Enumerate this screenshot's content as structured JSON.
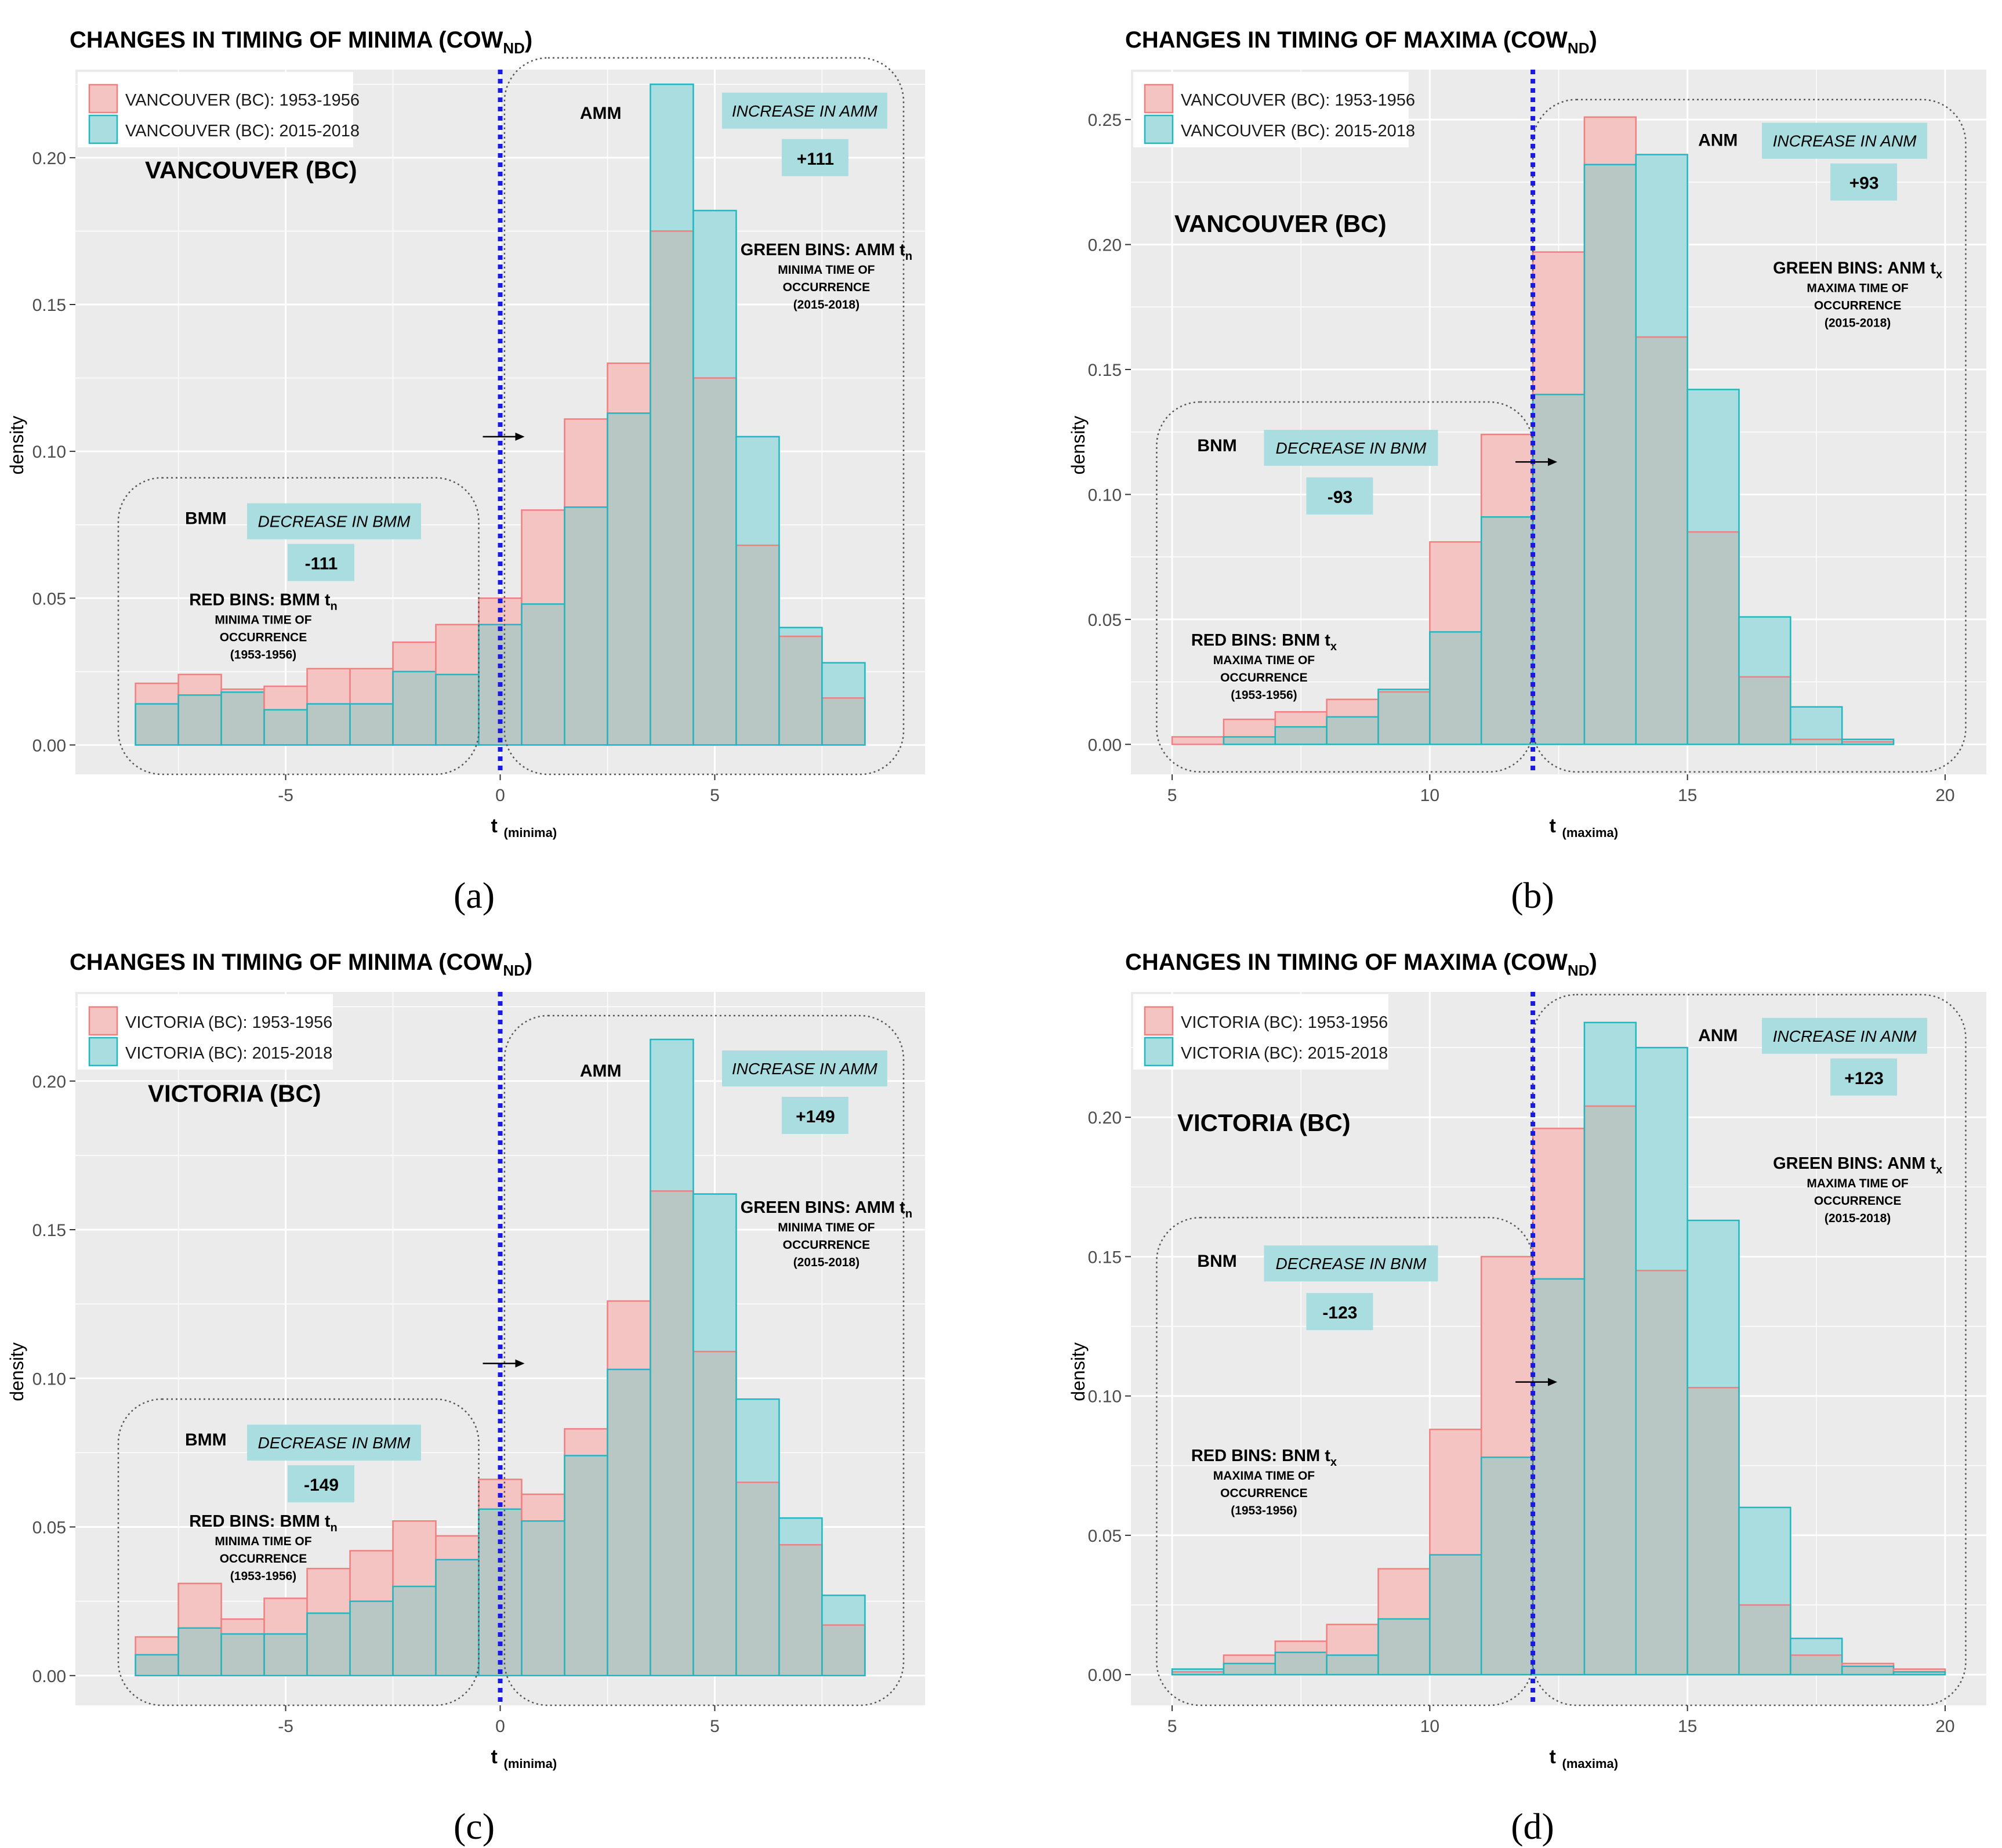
{
  "figure": {
    "note": "Four-panel histogram figure comparing timing of minima and maxima",
    "colors": {
      "red_fill": "#f4c4c3",
      "red_stroke": "#f08080",
      "cyan_fill": "#a9dde0",
      "cyan_stroke": "#1fb8c1",
      "overlap_fill": "#b8c7c4",
      "panel_bg": "#ebebeb",
      "grid": "#ffffff",
      "vline": "#1a1ae6",
      "label_box": "#a9dde0"
    }
  },
  "chart_data": [
    {
      "id": "a",
      "type": "bar",
      "panel_label": "(a)",
      "title_main": "CHANGES IN TIMING OF MINIMA (COW",
      "title_sub": "ND",
      "title_close": ")",
      "xlabel": "t",
      "xlabel_sub": "(minima)",
      "ylabel": "density",
      "xlim": [
        -9.9,
        9.9
      ],
      "ylim": [
        -0.01,
        0.23
      ],
      "xticks": [
        -5,
        0,
        5
      ],
      "xtick_labels": [
        "-5",
        "0",
        "5"
      ],
      "yticks": [
        0,
        0.05,
        0.1,
        0.15,
        0.2
      ],
      "ytick_labels": [
        "0.00",
        "0.05",
        "0.10",
        "0.15",
        "0.20"
      ],
      "vline": 0,
      "bin_width": 1,
      "bin_starts": [
        -8.5,
        -7.5,
        -6.5,
        -5.5,
        -4.5,
        -3.5,
        -2.5,
        -1.5,
        -0.5,
        0.5,
        1.5,
        2.5,
        3.5,
        4.5,
        5.5,
        6.5,
        7.5,
        8.5
      ],
      "legend": [
        "VANCOUVER (BC): 1953-1956",
        "VANCOUVER (BC): 2015-2018"
      ],
      "series": [
        {
          "name": "VANCOUVER (BC): 1953-1956",
          "values": [
            0.021,
            0.024,
            0.019,
            0.02,
            0.026,
            0.026,
            0.035,
            0.041,
            0.05,
            0.08,
            0.111,
            0.13,
            0.175,
            0.125,
            0.068,
            0.037,
            0.016,
            0.0
          ]
        },
        {
          "name": "VANCOUVER (BC): 2015-2018",
          "values": [
            0.014,
            0.017,
            0.018,
            0.012,
            0.014,
            0.014,
            0.025,
            0.024,
            0.041,
            0.048,
            0.081,
            0.113,
            0.225,
            0.182,
            0.105,
            0.04,
            0.028,
            0.0
          ]
        }
      ],
      "station_label": "VANCOUVER (BC)",
      "left_box": {
        "x": [
          -8.9,
          -0.5
        ],
        "y": [
          -0.01,
          0.091
        ],
        "name": "BMM",
        "change_label": "DECREASE IN BMM",
        "change_value": "-111",
        "bins_main": "RED BINS: BMM t",
        "bins_sub": "n",
        "desc": [
          "MINIMA TIME OF",
          "OCCURRENCE",
          "(1953-1956)"
        ]
      },
      "right_box": {
        "x": [
          0.1,
          9.4
        ],
        "y": [
          -0.01,
          0.234
        ],
        "name": "AMM",
        "change_label": "INCREASE IN AMM",
        "change_value": "+111",
        "bins_main": "GREEN BINS: AMM t",
        "bins_sub": "n",
        "desc": [
          "MINIMA TIME OF",
          "OCCURRENCE",
          "(2015-2018)"
        ]
      }
    },
    {
      "id": "b",
      "type": "bar",
      "panel_label": "(b)",
      "title_main": "CHANGES IN TIMING OF MAXIMA (COW",
      "title_sub": "ND",
      "title_close": ")",
      "xlabel": "t",
      "xlabel_sub": "(maxima)",
      "ylabel": "density",
      "xlim": [
        4.2,
        20.8
      ],
      "ylim": [
        -0.012,
        0.27
      ],
      "xticks": [
        5,
        10,
        15,
        20
      ],
      "xtick_labels": [
        "5",
        "10",
        "15",
        "20"
      ],
      "yticks": [
        0,
        0.05,
        0.1,
        0.15,
        0.2,
        0.25
      ],
      "ytick_labels": [
        "0.00",
        "0.05",
        "0.10",
        "0.15",
        "0.20",
        "0.25"
      ],
      "vline": 12,
      "bin_width": 1,
      "bin_starts": [
        5,
        6,
        7,
        8,
        9,
        10,
        11,
        12,
        13,
        14,
        15,
        16,
        17,
        18,
        19
      ],
      "legend": [
        "VANCOUVER (BC): 1953-1956",
        "VANCOUVER (BC): 2015-2018"
      ],
      "series": [
        {
          "name": "VANCOUVER (BC): 1953-1956",
          "values": [
            0.003,
            0.01,
            0.013,
            0.018,
            0.021,
            0.081,
            0.124,
            0.197,
            0.251,
            0.163,
            0.085,
            0.027,
            0.002,
            0.001,
            0.0
          ]
        },
        {
          "name": "VANCOUVER (BC): 2015-2018",
          "values": [
            0.0,
            0.003,
            0.007,
            0.011,
            0.022,
            0.045,
            0.091,
            0.14,
            0.232,
            0.236,
            0.142,
            0.051,
            0.015,
            0.002,
            0.0
          ]
        }
      ],
      "station_label": "VANCOUVER (BC)",
      "left_box": {
        "x": [
          4.7,
          12.0
        ],
        "y": [
          -0.011,
          0.137
        ],
        "name": "BNM",
        "change_label": "DECREASE IN BNM",
        "change_value": "-93",
        "bins_main": "RED BINS: BNM t",
        "bins_sub": "x",
        "desc": [
          "MAXIMA TIME OF",
          "OCCURRENCE",
          "(1953-1956)"
        ]
      },
      "right_box": {
        "x": [
          12.0,
          20.4
        ],
        "y": [
          -0.011,
          0.258
        ],
        "name": "ANM",
        "change_label": "INCREASE IN ANM",
        "change_value": "+93",
        "bins_main": "GREEN BINS: ANM t",
        "bins_sub": "x",
        "desc": [
          "MAXIMA TIME OF",
          "OCCURRENCE",
          "(2015-2018)"
        ]
      }
    },
    {
      "id": "c",
      "type": "bar",
      "panel_label": "(c)",
      "title_main": "CHANGES IN TIMING OF MINIMA (COW",
      "title_sub": "ND",
      "title_close": ")",
      "xlabel": "t",
      "xlabel_sub": "(minima)",
      "ylabel": "density",
      "xlim": [
        -9.9,
        9.9
      ],
      "ylim": [
        -0.01,
        0.23
      ],
      "xticks": [
        -5,
        0,
        5
      ],
      "xtick_labels": [
        "-5",
        "0",
        "5"
      ],
      "yticks": [
        0,
        0.05,
        0.1,
        0.15,
        0.2
      ],
      "ytick_labels": [
        "0.00",
        "0.05",
        "0.10",
        "0.15",
        "0.20"
      ],
      "vline": 0,
      "bin_width": 1,
      "bin_starts": [
        -8.5,
        -7.5,
        -6.5,
        -5.5,
        -4.5,
        -3.5,
        -2.5,
        -1.5,
        -0.5,
        0.5,
        1.5,
        2.5,
        3.5,
        4.5,
        5.5,
        6.5,
        7.5,
        8.5
      ],
      "legend": [
        "VICTORIA (BC): 1953-1956",
        "VICTORIA (BC): 2015-2018"
      ],
      "series": [
        {
          "name": "VICTORIA (BC): 1953-1956",
          "values": [
            0.013,
            0.031,
            0.019,
            0.026,
            0.036,
            0.042,
            0.052,
            0.047,
            0.066,
            0.061,
            0.083,
            0.126,
            0.163,
            0.109,
            0.065,
            0.044,
            0.017,
            0.0
          ]
        },
        {
          "name": "VICTORIA (BC): 2015-2018",
          "values": [
            0.007,
            0.016,
            0.014,
            0.014,
            0.021,
            0.025,
            0.03,
            0.039,
            0.056,
            0.052,
            0.074,
            0.103,
            0.214,
            0.162,
            0.093,
            0.053,
            0.027,
            0.0
          ]
        }
      ],
      "station_label": "VICTORIA (BC)",
      "left_box": {
        "x": [
          -8.9,
          -0.5
        ],
        "y": [
          -0.01,
          0.093
        ],
        "name": "BMM",
        "change_label": "DECREASE IN BMM",
        "change_value": "-149",
        "bins_main": "RED BINS: BMM t",
        "bins_sub": "n",
        "desc": [
          "MINIMA TIME OF",
          "OCCURRENCE",
          "(1953-1956)"
        ]
      },
      "right_box": {
        "x": [
          0.1,
          9.4
        ],
        "y": [
          -0.01,
          0.222
        ],
        "name": "AMM",
        "change_label": "INCREASE IN AMM",
        "change_value": "+149",
        "bins_main": "GREEN BINS: AMM t",
        "bins_sub": "n",
        "desc": [
          "MINIMA TIME OF",
          "OCCURRENCE",
          "(2015-2018)"
        ]
      }
    },
    {
      "id": "d",
      "type": "bar",
      "panel_label": "(d)",
      "title_main": "CHANGES IN TIMING OF MAXIMA (COW",
      "title_sub": "ND",
      "title_close": ")",
      "xlabel": "t",
      "xlabel_sub": "(maxima)",
      "ylabel": "density",
      "xlim": [
        4.2,
        20.8
      ],
      "ylim": [
        -0.011,
        0.245
      ],
      "xticks": [
        5,
        10,
        15,
        20
      ],
      "xtick_labels": [
        "5",
        "10",
        "15",
        "20"
      ],
      "yticks": [
        0,
        0.05,
        0.1,
        0.15,
        0.2
      ],
      "ytick_labels": [
        "0.00",
        "0.05",
        "0.10",
        "0.15",
        "0.20"
      ],
      "vline": 12,
      "bin_width": 1,
      "bin_starts": [
        5,
        6,
        7,
        8,
        9,
        10,
        11,
        12,
        13,
        14,
        15,
        16,
        17,
        18,
        19
      ],
      "legend": [
        "VICTORIA (BC): 1953-1956",
        "VICTORIA (BC): 2015-2018"
      ],
      "series": [
        {
          "name": "VICTORIA (BC): 1953-1956",
          "values": [
            0.001,
            0.007,
            0.012,
            0.018,
            0.038,
            0.088,
            0.15,
            0.196,
            0.204,
            0.145,
            0.103,
            0.025,
            0.007,
            0.004,
            0.002
          ]
        },
        {
          "name": "VICTORIA (BC): 2015-2018",
          "values": [
            0.002,
            0.004,
            0.008,
            0.007,
            0.02,
            0.043,
            0.078,
            0.142,
            0.234,
            0.225,
            0.163,
            0.06,
            0.013,
            0.003,
            0.001
          ]
        }
      ],
      "station_label": "VICTORIA (BC)",
      "left_box": {
        "x": [
          4.7,
          12.0
        ],
        "y": [
          -0.011,
          0.164
        ],
        "name": "BNM",
        "change_label": "DECREASE IN BNM",
        "change_value": "-123",
        "bins_main": "RED BINS: BNM t",
        "bins_sub": "x",
        "desc": [
          "MAXIMA TIME OF",
          "OCCURRENCE",
          "(1953-1956)"
        ]
      },
      "right_box": {
        "x": [
          12.0,
          20.4
        ],
        "y": [
          -0.011,
          0.244
        ],
        "name": "ANM",
        "change_label": "INCREASE IN ANM",
        "change_value": "+123",
        "bins_main": "GREEN BINS: ANM t",
        "bins_sub": "x",
        "desc": [
          "MAXIMA TIME OF",
          "OCCURRENCE",
          "(2015-2018)"
        ]
      }
    }
  ]
}
